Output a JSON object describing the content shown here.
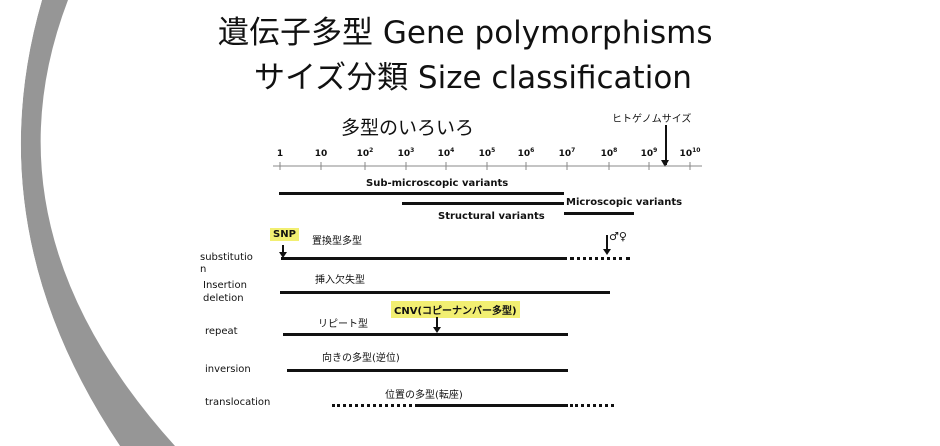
{
  "slide": {
    "title_line1": "遺伝子多型 Gene polymorphisms",
    "title_line2": "サイズ分類 Size classification"
  },
  "figure": {
    "heading": "多型のいろいろ",
    "genome_size_label": "ヒトゲノムサイズ",
    "scale": [
      {
        "base": "1",
        "exp": ""
      },
      {
        "base": "10",
        "exp": ""
      },
      {
        "base": "10",
        "exp": "2"
      },
      {
        "base": "10",
        "exp": "3"
      },
      {
        "base": "10",
        "exp": "4"
      },
      {
        "base": "10",
        "exp": "5"
      },
      {
        "base": "10",
        "exp": "6"
      },
      {
        "base": "10",
        "exp": "7"
      },
      {
        "base": "10",
        "exp": "8"
      },
      {
        "base": "10",
        "exp": "9"
      },
      {
        "base": "10",
        "exp": "10"
      }
    ],
    "categories": {
      "sub_microscopic": "Sub-microscopic variants",
      "microscopic": "Microscopic variants",
      "structural": "Structural variants"
    },
    "highlights": {
      "snp": "SNP",
      "cnv": "CNV(コピーナンバー多型)"
    },
    "sex_symbols": "♂♀",
    "rows": [
      {
        "label": "substitution",
        "desc": "置換型多型"
      },
      {
        "label": "Insertion\ndeletion",
        "desc": "挿入欠失型"
      },
      {
        "label": "repeat",
        "desc": "リピート型"
      },
      {
        "label": "inversion",
        "desc": "向きの多型(逆位)"
      },
      {
        "label": "translocation",
        "desc": "位置の多型(転座)"
      }
    ]
  }
}
